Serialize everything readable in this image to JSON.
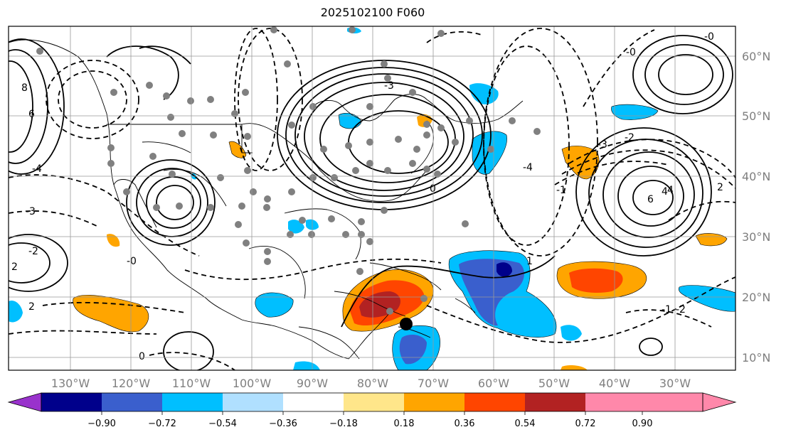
{
  "title": "2025102100 F060",
  "lon_labels": [
    "130°W",
    "120°W",
    "110°W",
    "100°W",
    "90°W",
    "80°W",
    "70°W",
    "60°W",
    "50°W",
    "40°W",
    "30°W"
  ],
  "lat_labels": [
    "60°N",
    "50°N",
    "40°N",
    "30°N",
    "20°N",
    "10°N"
  ],
  "colorbar": {
    "ticks": [
      "−0.90",
      "−0.72",
      "−0.54",
      "−0.36",
      "−0.18",
      "0.18",
      "0.36",
      "0.54",
      "0.72",
      "0.90"
    ],
    "colors": [
      "#9932cc",
      "#00008b",
      "#3a5fcd",
      "#00bfff",
      "#b0e0ff",
      "#ffffff",
      "#ffe68a",
      "#ffa500",
      "#ff4500",
      "#b22222",
      "#ff88aa"
    ]
  },
  "contour_labels": [
    "-3",
    "-3",
    "-2",
    "-4",
    "-0",
    "-0",
    "2",
    "4",
    "6",
    "8",
    "-0",
    "2",
    "-4",
    "-2",
    "4",
    "6",
    "0",
    "-1",
    "1",
    "-1",
    "-3",
    "-2",
    "0",
    "2"
  ],
  "marker": {
    "lon": "75°W",
    "lat": "16°N"
  }
}
